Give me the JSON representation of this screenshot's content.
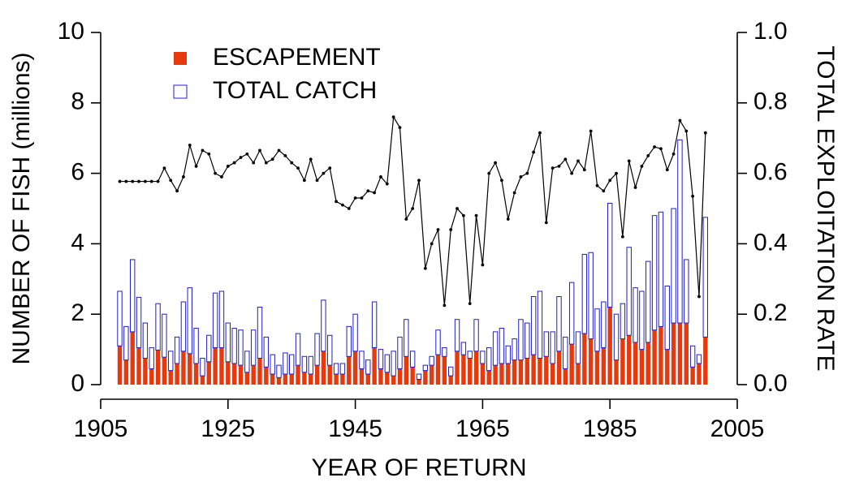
{
  "chart_data": {
    "type": "bar",
    "stacked": true,
    "xlabel": "YEAR OF RETURN",
    "ylabel": "NUMBER OF FISH (millions)",
    "y2label": "TOTAL EXPLOITATION RATE",
    "x": [
      1908,
      1909,
      1910,
      1911,
      1912,
      1913,
      1914,
      1915,
      1916,
      1917,
      1918,
      1919,
      1920,
      1921,
      1922,
      1923,
      1924,
      1925,
      1926,
      1927,
      1928,
      1929,
      1930,
      1931,
      1932,
      1933,
      1934,
      1935,
      1936,
      1937,
      1938,
      1939,
      1940,
      1941,
      1942,
      1943,
      1944,
      1945,
      1946,
      1947,
      1948,
      1949,
      1950,
      1951,
      1952,
      1953,
      1954,
      1955,
      1956,
      1957,
      1958,
      1959,
      1960,
      1961,
      1962,
      1963,
      1964,
      1965,
      1966,
      1967,
      1968,
      1969,
      1970,
      1971,
      1972,
      1973,
      1974,
      1975,
      1976,
      1977,
      1978,
      1979,
      1980,
      1981,
      1982,
      1983,
      1984,
      1985,
      1986,
      1987,
      1988,
      1989,
      1990,
      1991,
      1992,
      1993,
      1994,
      1995,
      1996,
      1997,
      1998,
      1999,
      2000
    ],
    "xlim": [
      1905,
      2005
    ],
    "xticks": [
      1905,
      1925,
      1945,
      1965,
      1985,
      2005
    ],
    "ylim": [
      0,
      10
    ],
    "yticks": [
      0,
      2,
      4,
      6,
      8,
      10
    ],
    "y2lim": [
      0,
      1
    ],
    "y2ticks": [
      {
        "value": 0,
        "label": "0.0"
      },
      0.2,
      0.4,
      0.6,
      0.8,
      {
        "value": 1,
        "label": "1.0"
      }
    ],
    "legend": "upper left",
    "series": [
      {
        "name": "ESCAPEMENT",
        "color": "#e8380d",
        "style": "filled",
        "values": [
          1.1,
          0.7,
          1.5,
          1.05,
          0.75,
          0.45,
          0.98,
          0.78,
          0.4,
          0.6,
          0.95,
          0.88,
          0.6,
          0.25,
          0.65,
          1.05,
          1.05,
          0.65,
          0.6,
          0.55,
          0.35,
          0.55,
          0.75,
          0.5,
          0.3,
          0.2,
          0.3,
          0.3,
          0.55,
          0.35,
          0.3,
          0.55,
          0.95,
          0.55,
          0.3,
          0.3,
          0.8,
          0.95,
          0.45,
          0.3,
          1.05,
          0.45,
          0.35,
          0.25,
          0.45,
          0.8,
          0.5,
          0.15,
          0.4,
          0.55,
          0.85,
          0.8,
          0.25,
          0.95,
          0.85,
          0.75,
          0.95,
          0.6,
          0.4,
          0.55,
          0.6,
          0.6,
          0.7,
          0.7,
          0.75,
          0.85,
          0.75,
          0.8,
          0.6,
          0.95,
          0.45,
          1.15,
          0.6,
          1.45,
          1.3,
          0.95,
          1.05,
          2.2,
          0.7,
          1.3,
          1.4,
          1.2,
          1.0,
          1.2,
          1.55,
          1.65,
          1.0,
          1.75,
          1.75,
          1.75,
          0.5,
          0.6,
          1.35
        ]
      },
      {
        "name": "TOTAL CATCH",
        "color": "#2020c0",
        "style": "outline",
        "values": [
          1.55,
          0.95,
          2.05,
          1.43,
          1.0,
          0.6,
          1.32,
          1.22,
          0.55,
          0.75,
          1.4,
          1.87,
          1.0,
          0.5,
          0.75,
          1.55,
          1.6,
          1.1,
          1.0,
          1.0,
          0.6,
          1.0,
          1.45,
          0.85,
          0.55,
          0.35,
          0.6,
          0.55,
          0.9,
          0.45,
          0.5,
          0.9,
          1.45,
          0.85,
          0.3,
          0.3,
          0.85,
          1.05,
          0.5,
          0.4,
          1.3,
          0.55,
          0.5,
          0.7,
          0.9,
          1.05,
          0.45,
          0.15,
          0.15,
          0.25,
          0.7,
          0.25,
          0.25,
          0.9,
          0.35,
          0.2,
          0.9,
          0.35,
          0.65,
          0.95,
          1.0,
          0.5,
          0.6,
          1.15,
          1.0,
          1.65,
          1.9,
          0.7,
          0.9,
          1.55,
          0.9,
          1.75,
          0.9,
          2.25,
          2.45,
          1.2,
          1.3,
          2.95,
          1.3,
          1.0,
          2.5,
          1.55,
          1.65,
          2.3,
          3.25,
          3.25,
          1.8,
          3.25,
          5.2,
          1.8,
          0.6,
          0.25,
          3.4
        ]
      },
      {
        "type": "line",
        "axis": "y2",
        "color": "#000000",
        "values": [
          0.577,
          0.577,
          0.577,
          0.577,
          0.577,
          0.577,
          0.577,
          0.615,
          0.58,
          0.55,
          0.59,
          0.68,
          0.62,
          0.665,
          0.655,
          0.6,
          0.59,
          0.62,
          0.63,
          0.645,
          0.655,
          0.63,
          0.665,
          0.63,
          0.64,
          0.665,
          0.65,
          0.63,
          0.615,
          0.58,
          0.64,
          0.58,
          0.6,
          0.615,
          0.52,
          0.51,
          0.5,
          0.53,
          0.53,
          0.55,
          0.545,
          0.59,
          0.57,
          0.76,
          0.73,
          0.47,
          0.5,
          0.58,
          0.33,
          0.4,
          0.44,
          0.225,
          0.44,
          0.5,
          0.48,
          0.23,
          0.48,
          0.34,
          0.6,
          0.63,
          0.58,
          0.47,
          0.545,
          0.59,
          0.6,
          0.66,
          0.715,
          0.46,
          0.615,
          0.62,
          0.64,
          0.6,
          0.635,
          0.61,
          0.72,
          0.565,
          0.55,
          0.58,
          0.6,
          0.42,
          0.635,
          0.56,
          0.62,
          0.65,
          0.675,
          0.67,
          0.61,
          0.655,
          0.75,
          0.72,
          0.535,
          0.25,
          0.715
        ]
      }
    ]
  }
}
